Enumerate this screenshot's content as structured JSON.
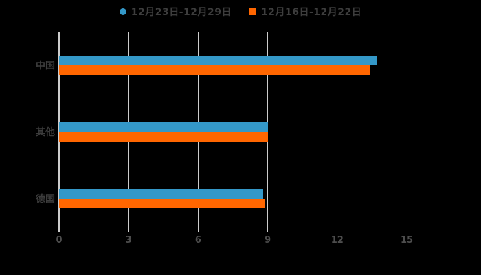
{
  "legend": {
    "items": [
      {
        "label": "12月23日-12月29日",
        "color": "#3498c8",
        "marker": "circle"
      },
      {
        "label": "12月16日-12月22日",
        "color": "#ff6600",
        "marker": "square"
      }
    ]
  },
  "chart_data": {
    "type": "bar",
    "orientation": "horizontal",
    "title": "",
    "categories": [
      "中国",
      "其他",
      "德国"
    ],
    "series": [
      {
        "name": "12月23日-12月29日",
        "color": "#3498c8",
        "values": [
          13.7,
          9.0,
          8.8
        ]
      },
      {
        "name": "12月16日-12月22日",
        "color": "#ff6600",
        "values": [
          13.4,
          9.0,
          8.9
        ]
      }
    ],
    "xlim": [
      0,
      15
    ],
    "xticks": [
      0,
      3,
      6,
      9,
      12,
      15
    ],
    "grid": true,
    "legend_position": "top",
    "annotation": {
      "type": "dashed-line",
      "x": 9,
      "category": "德国"
    }
  },
  "colors": {
    "background": "#000000",
    "grid": "#cccccc",
    "axis": "#cccccc",
    "category_label": "#3d3d3d",
    "tick_label": "#4d4d4d"
  }
}
